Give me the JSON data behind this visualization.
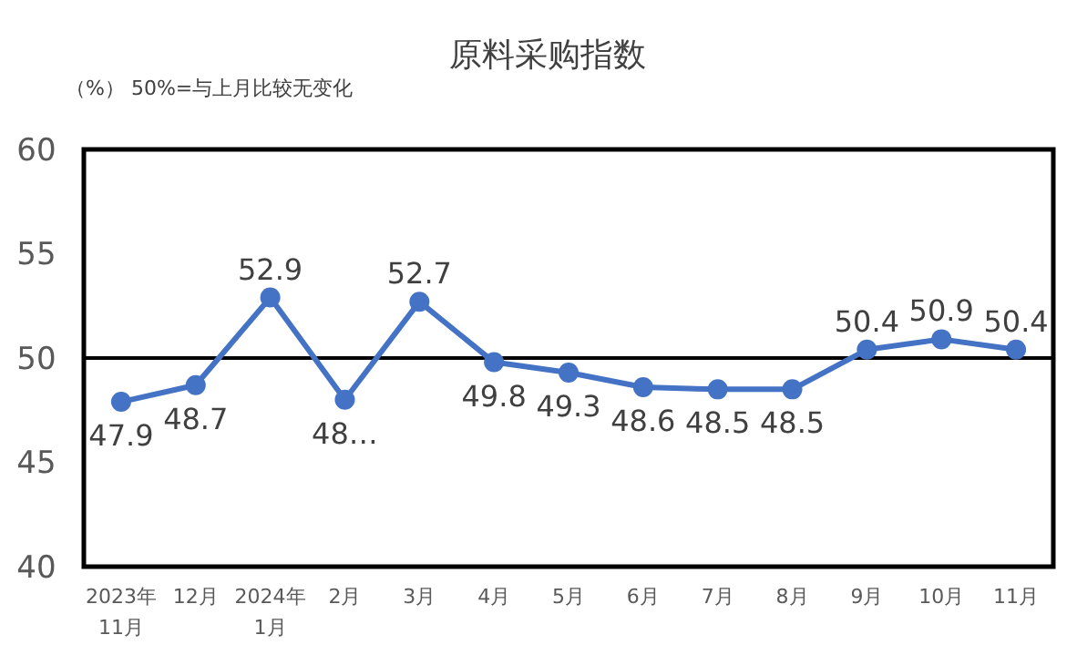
{
  "chart_data": {
    "type": "line",
    "title": "原料采购指数",
    "subtitle": "（%） 50%=与上月比较无变化",
    "categories": [
      "2023年\n11月",
      "12月",
      "2024年\n1月",
      "2月",
      "3月",
      "4月",
      "5月",
      "6月",
      "7月",
      "8月",
      "9月",
      "10月",
      "11月"
    ],
    "series": [
      {
        "color": "#4472c4",
        "values": [
          47.9,
          48.7,
          52.9,
          48.0,
          52.7,
          49.8,
          49.3,
          48.6,
          48.5,
          48.5,
          50.4,
          50.9,
          50.4
        ],
        "value_labels": [
          "47.9",
          "48.7",
          "52.9",
          "48…",
          "52.7",
          "49.8",
          "49.3",
          "48.6",
          "48.5",
          "48.5",
          "50.4",
          "50.9",
          "50.4"
        ]
      }
    ],
    "ylim": [
      40,
      60
    ],
    "yticks": [
      40,
      45,
      50,
      55,
      60
    ],
    "grid": false,
    "marker": "circle",
    "line_style": "solid",
    "ref_lines": [
      {
        "axis": "y",
        "value": 50,
        "color": "#000000"
      }
    ]
  }
}
